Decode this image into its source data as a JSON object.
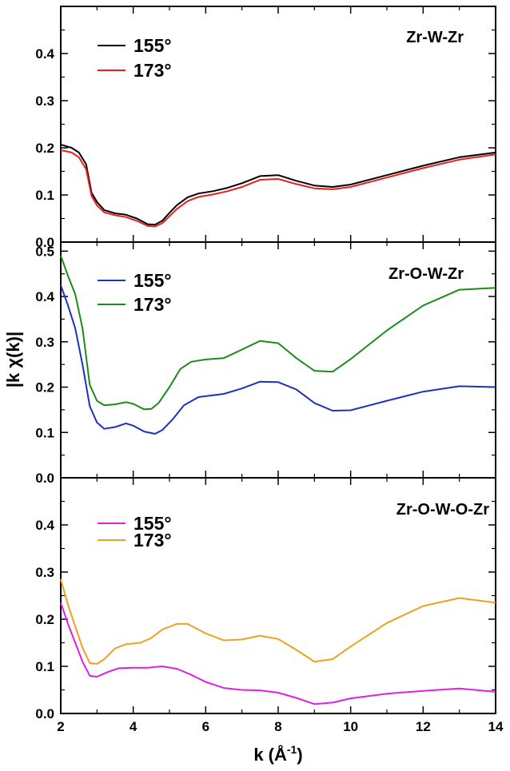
{
  "figure": {
    "ylabel": "|k χ(k)|",
    "xlabel_main": "k (Å",
    "xlabel_sup": "-1",
    "xlabel_close": ")"
  },
  "chart_data": [
    {
      "type": "line",
      "title": "Zr-W-Zr",
      "xlim": [
        2,
        14
      ],
      "ylim": [
        0,
        0.5
      ],
      "x_ticks": [
        2,
        4,
        6,
        8,
        10,
        12,
        14
      ],
      "y_ticks": [
        "0.0",
        "0.1",
        "0.2",
        "0.3",
        "0.4"
      ],
      "legend_position": "top-left",
      "series": [
        {
          "name": "155°",
          "color": "#000000",
          "points": [
            [
              2.0,
              0.207
            ],
            [
              2.3,
              0.2
            ],
            [
              2.5,
              0.19
            ],
            [
              2.7,
              0.165
            ],
            [
              2.85,
              0.105
            ],
            [
              3.0,
              0.085
            ],
            [
              3.2,
              0.068
            ],
            [
              3.5,
              0.061
            ],
            [
              3.8,
              0.058
            ],
            [
              4.1,
              0.05
            ],
            [
              4.4,
              0.038
            ],
            [
              4.6,
              0.037
            ],
            [
              4.8,
              0.045
            ],
            [
              5.0,
              0.062
            ],
            [
              5.2,
              0.078
            ],
            [
              5.5,
              0.095
            ],
            [
              5.8,
              0.103
            ],
            [
              6.2,
              0.108
            ],
            [
              6.6,
              0.115
            ],
            [
              7.0,
              0.125
            ],
            [
              7.5,
              0.14
            ],
            [
              8.0,
              0.142
            ],
            [
              8.5,
              0.13
            ],
            [
              9.0,
              0.12
            ],
            [
              9.5,
              0.117
            ],
            [
              10.0,
              0.122
            ],
            [
              11.0,
              0.142
            ],
            [
              12.0,
              0.162
            ],
            [
              13.0,
              0.18
            ],
            [
              14.0,
              0.19
            ]
          ]
        },
        {
          "name": "173°",
          "color": "#e8201c",
          "points": [
            [
              2.0,
              0.195
            ],
            [
              2.3,
              0.19
            ],
            [
              2.5,
              0.18
            ],
            [
              2.7,
              0.155
            ],
            [
              2.85,
              0.098
            ],
            [
              3.0,
              0.078
            ],
            [
              3.2,
              0.063
            ],
            [
              3.5,
              0.057
            ],
            [
              3.8,
              0.053
            ],
            [
              4.1,
              0.045
            ],
            [
              4.4,
              0.034
            ],
            [
              4.6,
              0.033
            ],
            [
              4.8,
              0.04
            ],
            [
              5.0,
              0.055
            ],
            [
              5.2,
              0.07
            ],
            [
              5.5,
              0.087
            ],
            [
              5.8,
              0.096
            ],
            [
              6.2,
              0.101
            ],
            [
              6.6,
              0.108
            ],
            [
              7.0,
              0.117
            ],
            [
              7.5,
              0.132
            ],
            [
              8.0,
              0.134
            ],
            [
              8.5,
              0.123
            ],
            [
              9.0,
              0.114
            ],
            [
              9.5,
              0.112
            ],
            [
              10.0,
              0.117
            ],
            [
              11.0,
              0.137
            ],
            [
              12.0,
              0.157
            ],
            [
              13.0,
              0.175
            ],
            [
              14.0,
              0.186
            ]
          ]
        }
      ]
    },
    {
      "type": "line",
      "title": "Zr-O-W-Zr",
      "xlim": [
        2,
        14
      ],
      "ylim": [
        0,
        0.52
      ],
      "x_ticks": [
        2,
        4,
        6,
        8,
        10,
        12,
        14
      ],
      "y_ticks": [
        "0.0",
        "0.1",
        "0.2",
        "0.3",
        "0.4",
        "0.5"
      ],
      "legend_position": "top-left",
      "series": [
        {
          "name": "155°",
          "color": "#1f2fbf",
          "points": [
            [
              2.0,
              0.425
            ],
            [
              2.2,
              0.38
            ],
            [
              2.4,
              0.33
            ],
            [
              2.6,
              0.25
            ],
            [
              2.8,
              0.158
            ],
            [
              3.0,
              0.122
            ],
            [
              3.2,
              0.108
            ],
            [
              3.5,
              0.112
            ],
            [
              3.8,
              0.12
            ],
            [
              4.0,
              0.115
            ],
            [
              4.3,
              0.102
            ],
            [
              4.6,
              0.097
            ],
            [
              4.8,
              0.105
            ],
            [
              5.1,
              0.13
            ],
            [
              5.4,
              0.16
            ],
            [
              5.8,
              0.178
            ],
            [
              6.5,
              0.185
            ],
            [
              7.0,
              0.197
            ],
            [
              7.5,
              0.212
            ],
            [
              8.0,
              0.211
            ],
            [
              8.5,
              0.195
            ],
            [
              9.0,
              0.165
            ],
            [
              9.5,
              0.148
            ],
            [
              10.0,
              0.149
            ],
            [
              11.0,
              0.17
            ],
            [
              12.0,
              0.19
            ],
            [
              13.0,
              0.202
            ],
            [
              14.0,
              0.2
            ]
          ]
        },
        {
          "name": "173°",
          "color": "#1a8c1a",
          "points": [
            [
              2.0,
              0.49
            ],
            [
              2.2,
              0.445
            ],
            [
              2.4,
              0.405
            ],
            [
              2.6,
              0.33
            ],
            [
              2.8,
              0.205
            ],
            [
              3.0,
              0.17
            ],
            [
              3.2,
              0.16
            ],
            [
              3.5,
              0.162
            ],
            [
              3.8,
              0.167
            ],
            [
              4.0,
              0.163
            ],
            [
              4.3,
              0.151
            ],
            [
              4.5,
              0.152
            ],
            [
              4.7,
              0.165
            ],
            [
              5.0,
              0.2
            ],
            [
              5.3,
              0.24
            ],
            [
              5.6,
              0.256
            ],
            [
              6.0,
              0.261
            ],
            [
              6.5,
              0.264
            ],
            [
              7.0,
              0.283
            ],
            [
              7.5,
              0.302
            ],
            [
              8.0,
              0.297
            ],
            [
              8.5,
              0.264
            ],
            [
              9.0,
              0.236
            ],
            [
              9.5,
              0.234
            ],
            [
              10.0,
              0.262
            ],
            [
              11.0,
              0.325
            ],
            [
              12.0,
              0.38
            ],
            [
              13.0,
              0.415
            ],
            [
              14.0,
              0.419
            ]
          ]
        }
      ]
    },
    {
      "type": "line",
      "title": "Zr-O-W-O-Zr",
      "xlim": [
        2,
        14
      ],
      "ylim": [
        0,
        0.5
      ],
      "x_ticks": [
        2,
        4,
        6,
        8,
        10,
        12,
        14
      ],
      "y_ticks": [
        "0.0",
        "0.1",
        "0.2",
        "0.3",
        "0.4"
      ],
      "legend_position": "top-left",
      "series": [
        {
          "name": "155°",
          "color": "#e020e0",
          "points": [
            [
              2.0,
              0.235
            ],
            [
              2.2,
              0.19
            ],
            [
              2.4,
              0.15
            ],
            [
              2.6,
              0.11
            ],
            [
              2.8,
              0.08
            ],
            [
              3.0,
              0.078
            ],
            [
              3.3,
              0.088
            ],
            [
              3.6,
              0.096
            ],
            [
              4.0,
              0.097
            ],
            [
              4.4,
              0.097
            ],
            [
              4.8,
              0.1
            ],
            [
              5.2,
              0.095
            ],
            [
              5.6,
              0.082
            ],
            [
              6.0,
              0.067
            ],
            [
              6.5,
              0.054
            ],
            [
              7.0,
              0.05
            ],
            [
              7.5,
              0.049
            ],
            [
              8.0,
              0.044
            ],
            [
              8.5,
              0.033
            ],
            [
              9.0,
              0.02
            ],
            [
              9.5,
              0.023
            ],
            [
              10.0,
              0.032
            ],
            [
              11.0,
              0.042
            ],
            [
              12.0,
              0.048
            ],
            [
              13.0,
              0.053
            ],
            [
              14.0,
              0.046
            ]
          ]
        },
        {
          "name": "173°",
          "color": "#f0a020",
          "points": [
            [
              2.0,
              0.285
            ],
            [
              2.2,
              0.23
            ],
            [
              2.4,
              0.185
            ],
            [
              2.6,
              0.14
            ],
            [
              2.8,
              0.107
            ],
            [
              3.0,
              0.105
            ],
            [
              3.2,
              0.115
            ],
            [
              3.5,
              0.138
            ],
            [
              3.8,
              0.147
            ],
            [
              4.2,
              0.15
            ],
            [
              4.5,
              0.16
            ],
            [
              4.8,
              0.178
            ],
            [
              5.2,
              0.19
            ],
            [
              5.5,
              0.19
            ],
            [
              6.0,
              0.17
            ],
            [
              6.5,
              0.155
            ],
            [
              7.0,
              0.157
            ],
            [
              7.5,
              0.165
            ],
            [
              8.0,
              0.158
            ],
            [
              8.5,
              0.135
            ],
            [
              9.0,
              0.11
            ],
            [
              9.5,
              0.115
            ],
            [
              10.0,
              0.142
            ],
            [
              11.0,
              0.192
            ],
            [
              12.0,
              0.228
            ],
            [
              13.0,
              0.245
            ],
            [
              14.0,
              0.235
            ]
          ]
        }
      ]
    }
  ]
}
